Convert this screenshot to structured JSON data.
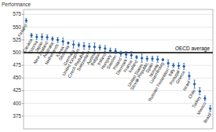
{
  "chart_data": {
    "type": "scatter",
    "y_label": "Performance",
    "categories": [
      "Finland",
      "Canada",
      "Estonia",
      "Japan",
      "New Zealand",
      "Australia",
      "Netherlands",
      "Korea",
      "Slovenia",
      "Germany",
      "United Kingdom",
      "Czech Republic",
      "Switzerland",
      "Austria",
      "Belgium",
      "Ireland",
      "Hungary",
      "Sweden",
      "Poland",
      "Denmark",
      "France",
      "Iceland",
      "United States",
      "Slovak Republic",
      "Spain",
      "Norway",
      "Luxembourg",
      "Russian Federation",
      "Italy",
      "Portugal",
      "Greece",
      "Israel",
      "Chile",
      "Turkey",
      "Mexico",
      "Brazil"
    ],
    "values": [
      563,
      534,
      531,
      531,
      530,
      527,
      525,
      522,
      519,
      516,
      515,
      513,
      512,
      511,
      510,
      508,
      504,
      503,
      498,
      496,
      495,
      491,
      489,
      488,
      488,
      487,
      486,
      479,
      475,
      474,
      473,
      454,
      438,
      424,
      410,
      390
    ],
    "errors": [
      4,
      4,
      5,
      6,
      5,
      4,
      5,
      7,
      2,
      7,
      4,
      7,
      6,
      8,
      5,
      6,
      5,
      5,
      5,
      6,
      7,
      3,
      8,
      5,
      5,
      6,
      2,
      7,
      4,
      6,
      6,
      7,
      8,
      7,
      5,
      6
    ],
    "color": "#1f5fa6",
    "marker": "diamond",
    "ylim": [
      350,
      585
    ],
    "yticks": [
      375,
      400,
      425,
      450,
      475,
      500,
      525,
      550,
      575
    ],
    "grid": true,
    "annotations": [
      {
        "text": "OECD average",
        "y": 500
      }
    ]
  }
}
